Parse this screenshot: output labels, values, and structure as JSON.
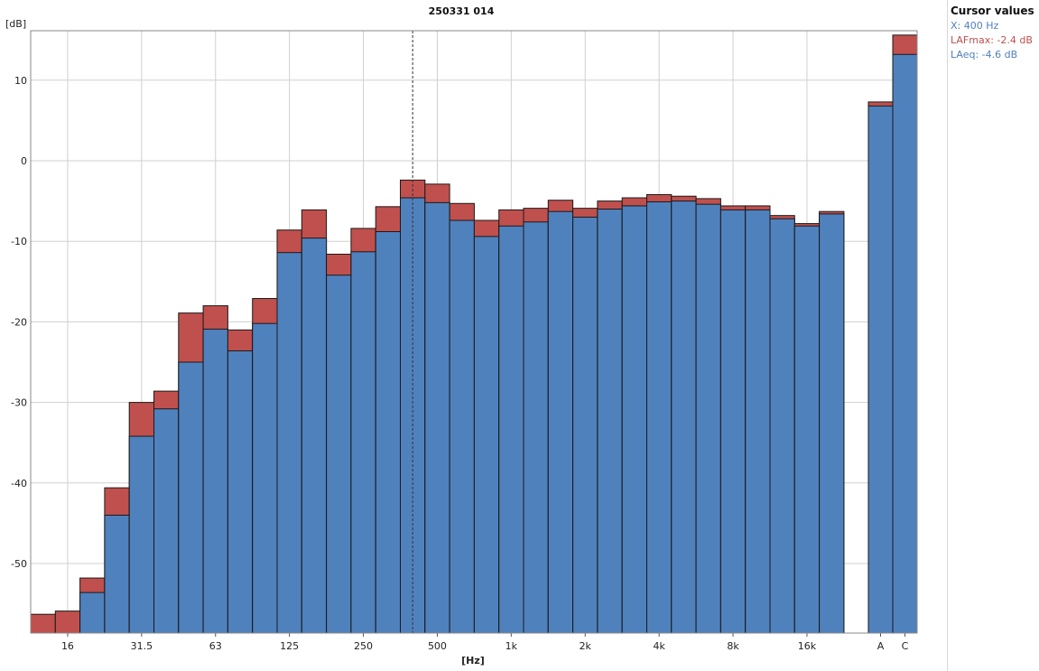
{
  "chart_data": {
    "type": "bar",
    "title": "250331 014",
    "ylabel": "[dB]",
    "xlabel": "[Hz]",
    "ylim": [
      -58,
      16
    ],
    "yticks": [
      10,
      0,
      -10,
      -20,
      -30,
      -40,
      -50
    ],
    "grid": true,
    "x_tick_labels": [
      "16",
      "31.5",
      "63",
      "125",
      "250",
      "500",
      "1k",
      "2k",
      "4k",
      "8k",
      "16k",
      "A",
      "C"
    ],
    "bands": [
      "12.5",
      "16",
      "20",
      "25",
      "31.5",
      "40",
      "50",
      "63",
      "80",
      "100",
      "125",
      "160",
      "200",
      "250",
      "315",
      "400",
      "500",
      "630",
      "800",
      "1k",
      "1.25k",
      "1.6k",
      "2k",
      "2.5k",
      "3.15k",
      "4k",
      "5k",
      "6.3k",
      "8k",
      "10k",
      "12.5k",
      "16k",
      "20k"
    ],
    "series": [
      {
        "name": "LAFmax",
        "color": "#c0504d",
        "values": [
          -56.3,
          -55.9,
          -51.8,
          -40.6,
          -30.0,
          -28.6,
          -18.9,
          -18.0,
          -21.0,
          -17.1,
          -8.6,
          -6.1,
          -11.6,
          -8.4,
          -5.7,
          -2.4,
          -2.9,
          -5.3,
          -7.4,
          -6.1,
          -5.9,
          -4.9,
          -5.9,
          -5.0,
          -4.6,
          -4.2,
          -4.4,
          -4.7,
          -5.6,
          -5.6,
          -6.8,
          -7.8,
          -6.3
        ]
      },
      {
        "name": "LAeq",
        "color": "#4f81bd",
        "values": [
          null,
          null,
          -53.6,
          -44.0,
          -34.2,
          -30.8,
          -25.0,
          -20.9,
          -23.6,
          -20.2,
          -11.4,
          -9.6,
          -14.2,
          -11.3,
          -8.8,
          -4.6,
          -5.2,
          -7.4,
          -9.4,
          -8.1,
          -7.6,
          -6.3,
          -7.0,
          -6.0,
          -5.6,
          -5.1,
          -5.0,
          -5.4,
          -6.1,
          -6.1,
          -7.2,
          -8.1,
          -6.6
        ]
      }
    ],
    "overall": {
      "labels": [
        "A",
        "C"
      ],
      "LAFmax": [
        7.3,
        15.6
      ],
      "LAeq": [
        6.8,
        13.2
      ]
    },
    "cursor_x_band": "400"
  },
  "cursor_panel": {
    "title": "Cursor values",
    "x": "X: 400 Hz",
    "max": "LAFmax: -2.4 dB",
    "eq": "LAeq: -4.6 dB",
    "x_color": "#4f81bd",
    "max_color": "#c0504d",
    "eq_color": "#4f81bd"
  }
}
